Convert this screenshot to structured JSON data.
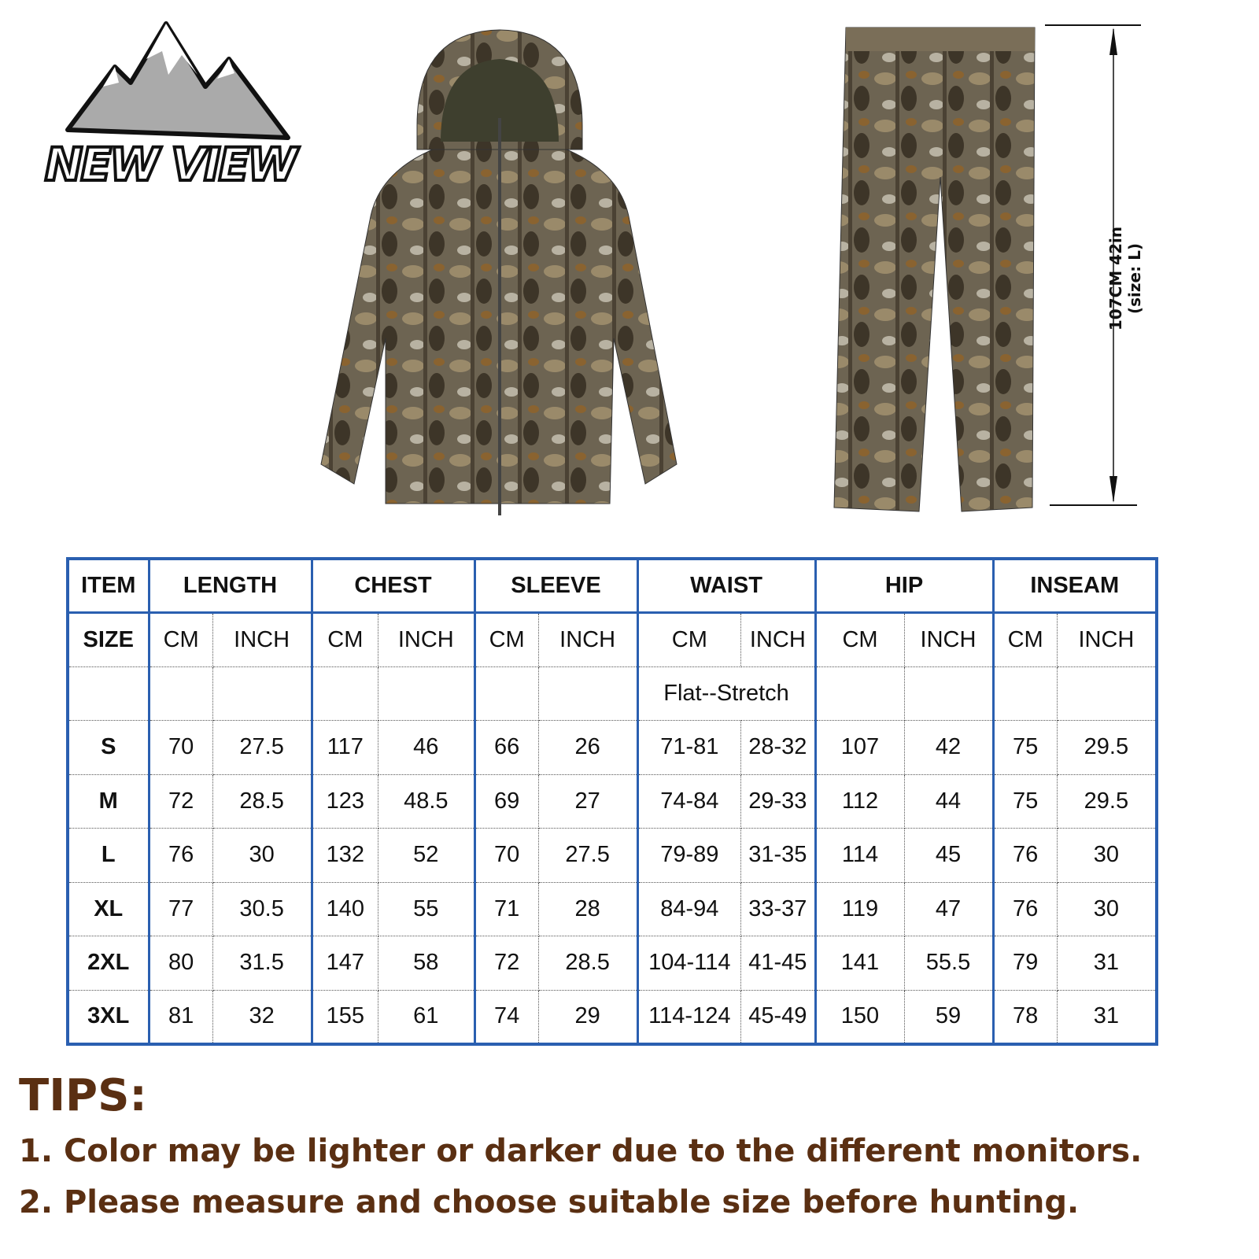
{
  "brand": {
    "logo_text": "NEW VIEW"
  },
  "pants_dimension": "107CM 42in (size: L)",
  "table": {
    "groups": [
      "ITEM",
      "LENGTH",
      "CHEST",
      "SLEEVE",
      "WAIST",
      "HIP",
      "INSEAM"
    ],
    "size_label": "SIZE",
    "units": [
      "CM",
      "INCH"
    ],
    "note": "Flat--Stretch",
    "rows": [
      [
        "S",
        "70",
        "27.5",
        "117",
        "46",
        "66",
        "26",
        "71-81",
        "28-32",
        "107",
        "42",
        "75",
        "29.5"
      ],
      [
        "M",
        "72",
        "28.5",
        "123",
        "48.5",
        "69",
        "27",
        "74-84",
        "29-33",
        "112",
        "44",
        "75",
        "29.5"
      ],
      [
        "L",
        "76",
        "30",
        "132",
        "52",
        "70",
        "27.5",
        "79-89",
        "31-35",
        "114",
        "45",
        "76",
        "30"
      ],
      [
        "XL",
        "77",
        "30.5",
        "140",
        "55",
        "71",
        "28",
        "84-94",
        "33-37",
        "119",
        "47",
        "76",
        "30"
      ],
      [
        "2XL",
        "80",
        "31.5",
        "147",
        "58",
        "72",
        "28.5",
        "104-114",
        "41-45",
        "141",
        "55.5",
        "79",
        "31"
      ],
      [
        "3XL",
        "81",
        "32",
        "155",
        "61",
        "74",
        "29",
        "114-124",
        "45-49",
        "150",
        "59",
        "78",
        "31"
      ]
    ]
  },
  "tips": {
    "title": "TIPS:",
    "items": [
      "1.  Color may be lighter or darker due to the different monitors.",
      "2.  Please measure and choose suitable size before hunting."
    ]
  },
  "colors": {
    "table_border": "#2a5fb0",
    "tips_text": "#5a2f12"
  }
}
